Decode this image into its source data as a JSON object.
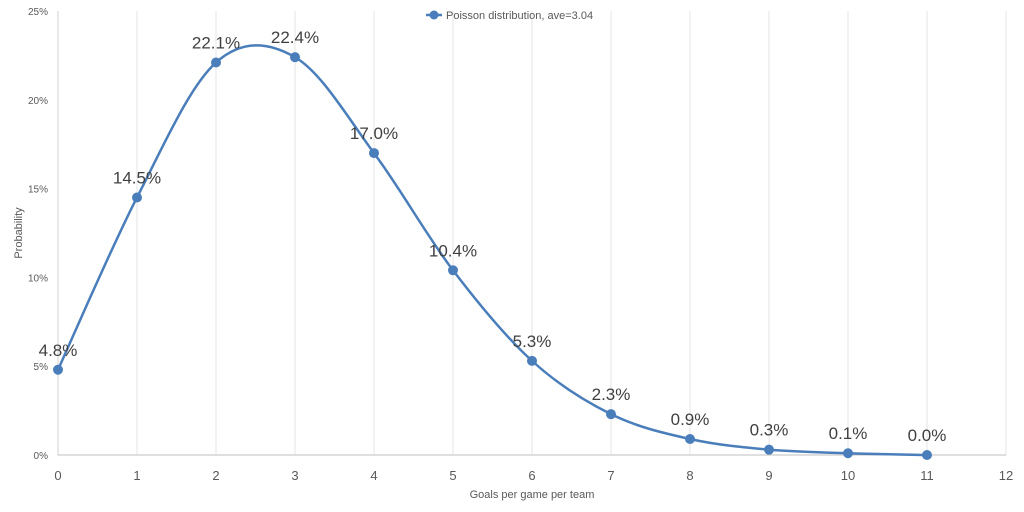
{
  "chart_data": {
    "type": "line",
    "x": [
      0,
      1,
      2,
      3,
      4,
      5,
      6,
      7,
      8,
      9,
      10,
      11
    ],
    "series": [
      {
        "name": "Poisson distribution, ave=3.04",
        "values": [
          4.8,
          14.5,
          22.1,
          22.4,
          17.0,
          10.4,
          5.3,
          2.3,
          0.9,
          0.3,
          0.1,
          0.0
        ],
        "labels": [
          "4.8%",
          "14.5%",
          "22.1%",
          "22.4%",
          "17.0%",
          "10.4%",
          "5.3%",
          "2.3%",
          "0.9%",
          "0.3%",
          "0.1%",
          "0.0%"
        ],
        "color": "#4a7ebb",
        "smooth": true,
        "marker": "circle"
      }
    ],
    "xlabel": "Goals per game per team",
    "ylabel": "Probability",
    "xlim": [
      0,
      12
    ],
    "ylim": [
      0,
      25
    ],
    "x_ticks": [
      "0",
      "1",
      "2",
      "3",
      "4",
      "5",
      "6",
      "7",
      "8",
      "9",
      "10",
      "11",
      "12"
    ],
    "y_ticks": [
      "0%",
      "5%",
      "10%",
      "15%",
      "20%",
      "25%"
    ],
    "grid": "vertical",
    "legend": "top-center"
  }
}
